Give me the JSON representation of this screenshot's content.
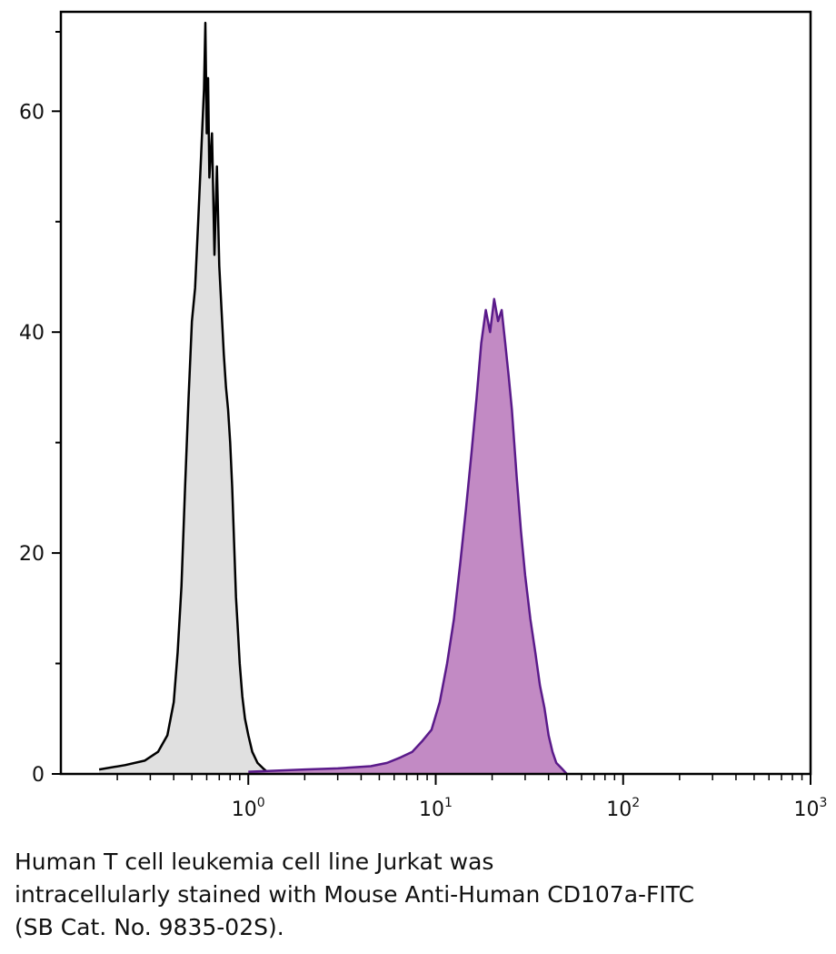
{
  "chart_data": {
    "type": "area",
    "x_scale": "log",
    "xlim": [
      0.1,
      1000
    ],
    "ylim": [
      0,
      69
    ],
    "grid": false,
    "y_ticks": [
      {
        "value": 0,
        "label": "0"
      },
      {
        "value": 20,
        "label": "20"
      },
      {
        "value": 40,
        "label": "40"
      },
      {
        "value": 60,
        "label": "60"
      }
    ],
    "x_ticks": [
      {
        "value": 1,
        "base": "10",
        "exp": "0"
      },
      {
        "value": 10,
        "base": "10",
        "exp": "1"
      },
      {
        "value": 100,
        "base": "10",
        "exp": "2"
      },
      {
        "value": 1000,
        "base": "10",
        "exp": "3"
      }
    ],
    "series": [
      {
        "fill": "#e0e0e0",
        "stroke": "#000000",
        "x": [
          0.16,
          0.22,
          0.28,
          0.33,
          0.37,
          0.4,
          0.42,
          0.44,
          0.46,
          0.48,
          0.5,
          0.52,
          0.54,
          0.56,
          0.58,
          0.59,
          0.6,
          0.61,
          0.62,
          0.64,
          0.66,
          0.68,
          0.7,
          0.72,
          0.74,
          0.76,
          0.78,
          0.8,
          0.82,
          0.84,
          0.86,
          0.88,
          0.9,
          0.93,
          0.96,
          1.0,
          1.05,
          1.12,
          1.2,
          1.3
        ],
        "y": [
          0.4,
          0.8,
          1.2,
          2.0,
          3.5,
          6.5,
          11,
          17,
          26,
          34,
          41,
          44,
          50,
          56,
          62,
          68,
          58,
          63,
          54,
          58,
          47,
          55,
          46,
          42,
          38,
          35,
          33,
          30,
          26,
          21,
          16,
          13,
          10,
          7,
          5,
          3.5,
          2,
          1,
          0.5,
          0
        ]
      },
      {
        "fill": "#c28ac4",
        "stroke": "#5a1a8a",
        "x": [
          1.0,
          2.0,
          3.0,
          4.5,
          5.5,
          6.5,
          7.5,
          8.5,
          9.5,
          10.5,
          11.5,
          12.5,
          13.5,
          14.5,
          15.5,
          16.5,
          17.5,
          18.5,
          19.5,
          20.5,
          21.5,
          22.5,
          23.5,
          24.5,
          25.5,
          27,
          28.5,
          30,
          32,
          34,
          36,
          38,
          40,
          42,
          44,
          47,
          50
        ],
        "y": [
          0.2,
          0.4,
          0.5,
          0.7,
          1.0,
          1.5,
          2.0,
          3.0,
          4.0,
          6.5,
          10,
          14,
          19,
          24,
          29,
          34,
          39,
          42,
          40,
          43,
          41,
          42,
          39,
          36,
          33,
          27,
          22,
          18,
          14,
          11,
          8,
          6,
          3.5,
          2,
          1,
          0.5,
          0
        ]
      }
    ]
  },
  "caption": {
    "line1": "Human T cell leukemia cell line Jurkat was",
    "line2": "intracellularly stained with Mouse Anti-Human CD107a-FITC",
    "line3": "(SB Cat. No. 9835-02S)."
  }
}
